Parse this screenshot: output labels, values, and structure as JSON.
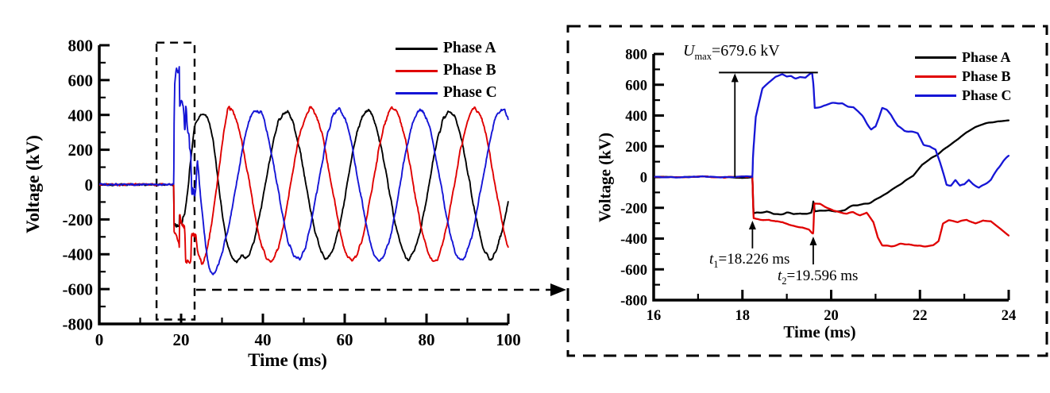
{
  "figure": {
    "background": "#ffffff",
    "colors": {
      "phase_a": "#000000",
      "phase_b": "#e00000",
      "phase_c": "#1515d6"
    }
  },
  "chart_data": [
    {
      "id": "overview",
      "type": "line",
      "title": "",
      "xlabel": "Time (ms)",
      "ylabel": "Voltage (kV)",
      "xlim": [
        0,
        100
      ],
      "ylim": [
        -800,
        800
      ],
      "x_major_ticks": [
        0,
        20,
        40,
        60,
        80,
        100
      ],
      "x_minor_step": 10,
      "y_major_ticks": [
        -800,
        -600,
        -400,
        -200,
        0,
        200,
        400,
        600,
        800
      ],
      "y_minor_step": 100,
      "grid": false,
      "legend_position": "top-right",
      "legend": [
        {
          "label": "Phase A",
          "color": "#000000"
        },
        {
          "label": "Phase B",
          "color": "#e00000"
        },
        {
          "label": "Phase C",
          "color": "#1515d6"
        }
      ],
      "zoom_region": {
        "t0": 14.0,
        "t1": 23.3,
        "v0": -775,
        "v1": 815
      },
      "link_arrow_kv": -604
    },
    {
      "id": "zoom",
      "type": "line",
      "title": "",
      "xlabel": "Time (ms)",
      "ylabel": "Voltage (kV)",
      "xlim": [
        16,
        24
      ],
      "ylim": [
        -800,
        800
      ],
      "x_major_ticks": [
        16,
        18,
        20,
        22,
        24
      ],
      "x_minor_step": 1,
      "y_major_ticks": [
        -800,
        -600,
        -400,
        -200,
        0,
        200,
        400,
        600,
        800
      ],
      "y_minor_step": 100,
      "grid": false,
      "legend_position": "top-right",
      "legend": [
        {
          "label": "Phase A",
          "color": "#000000"
        },
        {
          "label": "Phase B",
          "color": "#e00000"
        },
        {
          "label": "Phase C",
          "color": "#1515d6"
        }
      ],
      "annotations": {
        "u_max": {
          "var": "U",
          "sub": "max",
          "rest": "=679.6 kV",
          "value_kv": 679.6,
          "line_t": [
            17.47,
            19.7
          ],
          "arrow_t": 17.83
        },
        "t1": {
          "var": "t",
          "sub": "1",
          "rest": "=18.226 ms",
          "time_ms": 18.226,
          "arrow_tip_kv": -284,
          "arrow_tail_kv": -464
        },
        "t2": {
          "var": "t",
          "sub": "2",
          "rest": "=19.596 ms",
          "time_ms": 19.596,
          "arrow_tip_kv": -387,
          "arrow_tail_kv": -568
        }
      }
    }
  ],
  "signal": {
    "pre_fault_kv": 0,
    "fault_time_ms": 18.226,
    "breaker_event_ms": 19.596,
    "u_max_kv": 679.6,
    "period_ms": 20,
    "steady": {
      "A": {
        "amp": 420,
        "peak_ms": 25.6,
        "from_ms": 35.0
      },
      "B": {
        "amp": 435,
        "peak_ms": 31.8,
        "from_ms": 32.0
      },
      "C": {
        "amp": 430,
        "peak_ms": 38.5,
        "from_ms": 30.0
      }
    },
    "transient": {
      "A": [
        [
          18.226,
          0
        ],
        [
          18.25,
          -228
        ],
        [
          18.4,
          -232
        ],
        [
          18.55,
          -225
        ],
        [
          18.7,
          -240
        ],
        [
          18.85,
          -238
        ],
        [
          19.0,
          -230
        ],
        [
          19.15,
          -238
        ],
        [
          19.3,
          -232
        ],
        [
          19.45,
          -242
        ],
        [
          19.55,
          -238
        ],
        [
          19.58,
          -205
        ],
        [
          19.6,
          -163
        ],
        [
          19.63,
          -232
        ],
        [
          19.8,
          -228
        ],
        [
          19.95,
          -222
        ],
        [
          20.1,
          -230
        ],
        [
          20.3,
          -228
        ],
        [
          20.5,
          -196
        ],
        [
          20.7,
          -180
        ],
        [
          20.9,
          -152
        ],
        [
          21.1,
          -120
        ],
        [
          21.35,
          -78
        ],
        [
          21.6,
          -40
        ],
        [
          21.85,
          5
        ],
        [
          22.05,
          80
        ],
        [
          22.25,
          125
        ],
        [
          22.45,
          160
        ],
        [
          22.65,
          195
        ],
        [
          22.85,
          235
        ],
        [
          23.05,
          285
        ],
        [
          23.25,
          325
        ],
        [
          23.5,
          350
        ],
        [
          23.75,
          370
        ],
        [
          24.0,
          380
        ],
        [
          24.4,
          390
        ],
        [
          24.9,
          398
        ],
        [
          25.6,
          405
        ],
        [
          26.3,
          398
        ],
        [
          27.0,
          350
        ],
        [
          27.8,
          255
        ],
        [
          28.6,
          120
        ],
        [
          29.4,
          -40
        ],
        [
          30.2,
          -200
        ],
        [
          31.0,
          -310
        ],
        [
          31.8,
          -385
        ],
        [
          32.6,
          -420
        ],
        [
          33.4,
          -435
        ],
        [
          34.2,
          -430
        ],
        [
          35.0,
          -412
        ]
      ],
      "B": [
        [
          18.226,
          0
        ],
        [
          18.25,
          -262
        ],
        [
          18.4,
          -270
        ],
        [
          18.6,
          -268
        ],
        [
          18.75,
          -285
        ],
        [
          18.9,
          -280
        ],
        [
          19.05,
          -298
        ],
        [
          19.2,
          -310
        ],
        [
          19.35,
          -318
        ],
        [
          19.5,
          -340
        ],
        [
          19.57,
          -368
        ],
        [
          19.596,
          -372
        ],
        [
          19.62,
          -178
        ],
        [
          19.75,
          -182
        ],
        [
          19.9,
          -205
        ],
        [
          20.05,
          -228
        ],
        [
          20.2,
          -240
        ],
        [
          20.35,
          -248
        ],
        [
          20.5,
          -238
        ],
        [
          20.65,
          -255
        ],
        [
          20.8,
          -238
        ],
        [
          20.95,
          -300
        ],
        [
          21.05,
          -398
        ],
        [
          21.15,
          -448
        ],
        [
          21.35,
          -455
        ],
        [
          21.55,
          -442
        ],
        [
          21.75,
          -438
        ],
        [
          21.95,
          -448
        ],
        [
          22.15,
          -442
        ],
        [
          22.3,
          -438
        ],
        [
          22.42,
          -415
        ],
        [
          22.52,
          -302
        ],
        [
          22.65,
          -285
        ],
        [
          22.85,
          -298
        ],
        [
          23.05,
          -282
        ],
        [
          23.25,
          -302
        ],
        [
          23.42,
          -280
        ],
        [
          23.6,
          -288
        ],
        [
          23.8,
          -342
        ],
        [
          24.0,
          -392
        ],
        [
          24.5,
          -428
        ],
        [
          25.0,
          -448
        ],
        [
          25.6,
          -442
        ],
        [
          26.2,
          -400
        ],
        [
          26.9,
          -315
        ],
        [
          27.6,
          -205
        ],
        [
          28.3,
          -85
        ],
        [
          29.0,
          45
        ],
        [
          29.7,
          170
        ],
        [
          30.4,
          285
        ],
        [
          31.0,
          380
        ],
        [
          31.4,
          440
        ],
        [
          31.8,
          460
        ],
        [
          32.0,
          436
        ]
      ],
      "C": [
        [
          18.226,
          0
        ],
        [
          18.24,
          145
        ],
        [
          18.3,
          390
        ],
        [
          18.45,
          575
        ],
        [
          18.6,
          618
        ],
        [
          18.75,
          652
        ],
        [
          18.9,
          668
        ],
        [
          19.0,
          655
        ],
        [
          19.1,
          662
        ],
        [
          19.2,
          650
        ],
        [
          19.3,
          655
        ],
        [
          19.42,
          648
        ],
        [
          19.52,
          670
        ],
        [
          19.57,
          678
        ],
        [
          19.6,
          600
        ],
        [
          19.63,
          448
        ],
        [
          19.75,
          455
        ],
        [
          19.88,
          462
        ],
        [
          20.0,
          478
        ],
        [
          20.12,
          488
        ],
        [
          20.25,
          490
        ],
        [
          20.38,
          468
        ],
        [
          20.5,
          462
        ],
        [
          20.6,
          432
        ],
        [
          20.7,
          395
        ],
        [
          20.8,
          345
        ],
        [
          20.9,
          302
        ],
        [
          21.0,
          315
        ],
        [
          21.07,
          368
        ],
        [
          21.15,
          438
        ],
        [
          21.25,
          428
        ],
        [
          21.35,
          398
        ],
        [
          21.5,
          332
        ],
        [
          21.65,
          302
        ],
        [
          21.8,
          295
        ],
        [
          21.95,
          288
        ],
        [
          22.08,
          218
        ],
        [
          22.22,
          208
        ],
        [
          22.35,
          182
        ],
        [
          22.45,
          95
        ],
        [
          22.52,
          25
        ],
        [
          22.6,
          -58
        ],
        [
          22.7,
          -62
        ],
        [
          22.8,
          -28
        ],
        [
          22.9,
          -66
        ],
        [
          23.0,
          -55
        ],
        [
          23.1,
          -18
        ],
        [
          23.2,
          -45
        ],
        [
          23.33,
          -68
        ],
        [
          23.47,
          -42
        ],
        [
          23.6,
          -18
        ],
        [
          23.75,
          50
        ],
        [
          23.88,
          95
        ],
        [
          24.0,
          128
        ],
        [
          24.3,
          60
        ],
        [
          24.8,
          -80
        ],
        [
          25.3,
          -200
        ],
        [
          25.9,
          -330
        ],
        [
          26.5,
          -430
        ],
        [
          27.2,
          -495
        ],
        [
          27.8,
          -512
        ],
        [
          28.5,
          -500
        ],
        [
          29.2,
          -462
        ],
        [
          30.0,
          -385
        ]
      ]
    }
  }
}
